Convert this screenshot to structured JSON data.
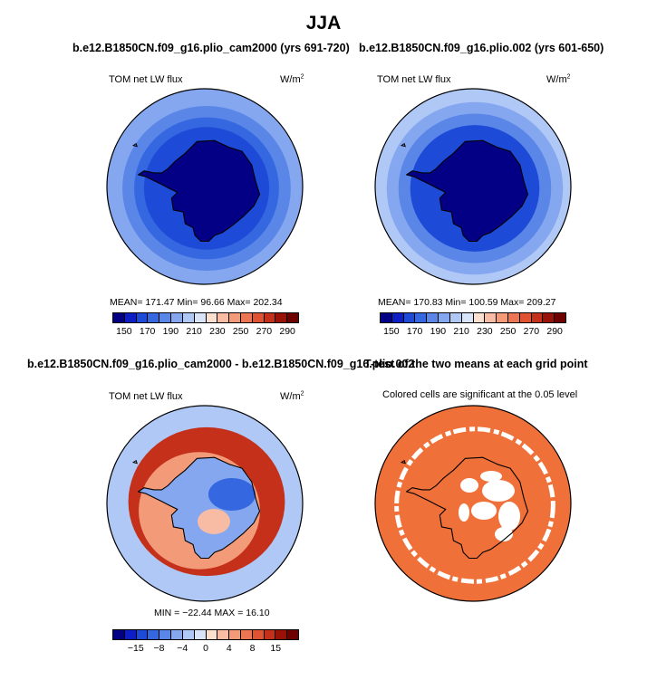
{
  "figure": {
    "title": "JJA"
  },
  "panels": [
    {
      "title": "b.e12.B1850CN.f09_g16.plio_cam2000 (yrs 691-720)",
      "variable_label": "TOM net LW flux",
      "units_base": "W/m",
      "units_exp": "2",
      "stats_text": "MEAN=  171.47    Min=    96.66    Max=  202.34",
      "colorbar": {
        "labels": [
          "150",
          "170",
          "190",
          "210",
          "230",
          "250",
          "270",
          "290"
        ],
        "colors": [
          "#040086",
          "#0d1fc4",
          "#1e4ad8",
          "#3467e0",
          "#5a86e8",
          "#85a7f0",
          "#b0c8f5",
          "#dae4f8",
          "#fbe0d0",
          "#f8bca5",
          "#f39a78",
          "#ec7654",
          "#df5333",
          "#c4301a",
          "#9a1108",
          "#6e0000"
        ]
      }
    },
    {
      "title": "b.e12.B1850CN.f09_g16.plio.002 (yrs 601-650)",
      "variable_label": "TOM net LW flux",
      "units_base": "W/m",
      "units_exp": "2",
      "stats_text": "MEAN=  170.83    Min=  100.59    Max=  209.27",
      "colorbar": {
        "labels": [
          "150",
          "170",
          "190",
          "210",
          "230",
          "250",
          "270",
          "290"
        ],
        "colors": [
          "#040086",
          "#0d1fc4",
          "#1e4ad8",
          "#3467e0",
          "#5a86e8",
          "#85a7f0",
          "#b0c8f5",
          "#dae4f8",
          "#fbe0d0",
          "#f8bca5",
          "#f39a78",
          "#ec7654",
          "#df5333",
          "#c4301a",
          "#9a1108",
          "#6e0000"
        ]
      }
    },
    {
      "title": "b.e12.B1850CN.f09_g16.plio_cam2000 - b.e12.B1850CN.f09_g16.plio.002",
      "variable_label": "TOM net LW flux",
      "units_base": "W/m",
      "units_exp": "2",
      "stats_text": "MIN = −22.44  MAX =   16.10",
      "colorbar": {
        "labels": [
          "−15",
          "−8",
          "−4",
          "0",
          "4",
          "8",
          "15"
        ],
        "colors": [
          "#040086",
          "#0d1fc4",
          "#1e4ad8",
          "#3467e0",
          "#5a86e8",
          "#85a7f0",
          "#b0c8f5",
          "#dae4f8",
          "#fbe0d0",
          "#f8bca5",
          "#f39a78",
          "#ec7654",
          "#df5333",
          "#c4301a",
          "#9a1108",
          "#6e0000"
        ]
      }
    },
    {
      "title": "T-test of the two means at each grid point",
      "subtitle": "Colored cells are significant at the 0.05 level",
      "fill_color": "#f0703a"
    }
  ],
  "chart_data": [
    {
      "type": "heatmap",
      "projection": "south-polar-stereographic",
      "title": "b.e12.B1850CN.f09_g16.plio_cam2000 (yrs 691-720)",
      "variable": "TOM net LW flux",
      "units": "W/m2",
      "mean": 171.47,
      "min": 96.66,
      "max": 202.34,
      "contour_levels": [
        150,
        160,
        170,
        180,
        190,
        200,
        210,
        220,
        230,
        240,
        250,
        260,
        270,
        280,
        290
      ],
      "zones": [
        {
          "region": "outer ocean ring",
          "value": 195
        },
        {
          "region": "mid ocean ring",
          "value": 185
        },
        {
          "region": "inner ocean ring",
          "value": 175
        },
        {
          "region": "ice edge",
          "value": 165
        },
        {
          "region": "antarctic interior",
          "value": 145
        }
      ]
    },
    {
      "type": "heatmap",
      "projection": "south-polar-stereographic",
      "title": "b.e12.B1850CN.f09_g16.plio.002 (yrs 601-650)",
      "variable": "TOM net LW flux",
      "units": "W/m2",
      "mean": 170.83,
      "min": 100.59,
      "max": 209.27,
      "contour_levels": [
        150,
        160,
        170,
        180,
        190,
        200,
        210,
        220,
        230,
        240,
        250,
        260,
        270,
        280,
        290
      ],
      "zones": [
        {
          "region": "outer ocean ring",
          "value": 205
        },
        {
          "region": "mid ocean ring",
          "value": 192
        },
        {
          "region": "inner ocean ring",
          "value": 180
        },
        {
          "region": "ice edge",
          "value": 165
        },
        {
          "region": "antarctic interior",
          "value": 145
        }
      ]
    },
    {
      "type": "heatmap",
      "projection": "south-polar-stereographic",
      "title": "b.e12.B1850CN.f09_g16.plio_cam2000 - b.e12.B1850CN.f09_g16.plio.002",
      "variable": "TOM net LW flux",
      "units": "W/m2",
      "min": -22.44,
      "max": 16.1,
      "contour_levels": [
        -15,
        -12,
        -10,
        -8,
        -6,
        -4,
        -2,
        0,
        2,
        4,
        6,
        8,
        10,
        12,
        15
      ],
      "zones": [
        {
          "region": "outer ocean ring",
          "value": -4
        },
        {
          "region": "sea-ice ring",
          "value": 10
        },
        {
          "region": "ice edge",
          "value": 4
        },
        {
          "region": "antarctic interior",
          "value": -6
        }
      ]
    },
    {
      "type": "heatmap",
      "projection": "south-polar-stereographic",
      "title": "T-test of the two means at each grid point",
      "subtitle": "Colored cells are significant at the 0.05 level",
      "significance_level": 0.05
    }
  ]
}
